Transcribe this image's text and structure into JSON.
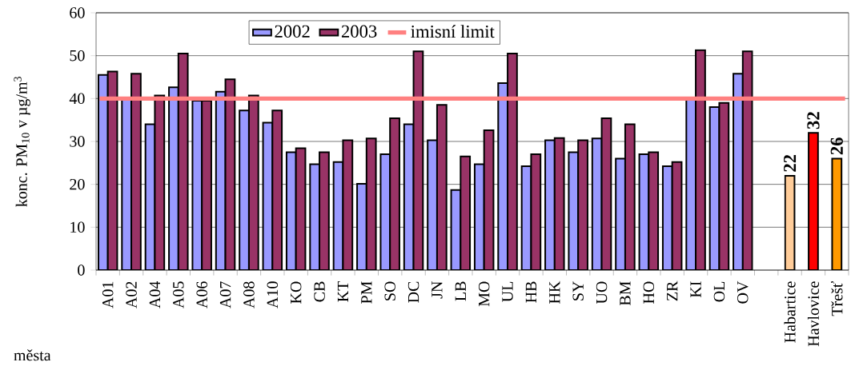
{
  "chart_data": {
    "type": "bar",
    "ylabel": "konc. PM$_{10}$ v µg/m$^{3}$",
    "xlabel": "města",
    "categories": [
      "A01",
      "A02",
      "A04",
      "A05",
      "A06",
      "A07",
      "A08",
      "A10",
      "KO",
      "CB",
      "KT",
      "PM",
      "SO",
      "DC",
      "JN",
      "LB",
      "MO",
      "UL",
      "HB",
      "HK",
      "SY",
      "UO",
      "BM",
      "HO",
      "ZR",
      "KI",
      "OL",
      "OV",
      null,
      "Habartice",
      "Havlovice",
      "Třešť"
    ],
    "series": [
      {
        "name": "2002",
        "color": "#9999ff",
        "values": [
          45.5,
          40,
          34,
          42.6,
          39.5,
          41.6,
          37.2,
          34.4,
          27.5,
          24.7,
          25.2,
          20.1,
          27,
          34,
          30.3,
          18.7,
          24.7,
          43.6,
          24.2,
          30.3,
          27.5,
          30.7,
          26,
          27,
          24.2,
          40,
          38,
          45.8,
          null,
          null,
          null,
          null
        ]
      },
      {
        "name": "2003",
        "color": "#993366",
        "values": [
          46.3,
          45.8,
          40.7,
          50.5,
          39.5,
          44.5,
          40.7,
          37.2,
          28.4,
          27.5,
          30.3,
          30.7,
          35.4,
          51,
          38.5,
          26.5,
          32.6,
          50.5,
          27,
          30.8,
          30.3,
          35.4,
          34,
          27.5,
          25.2,
          51.3,
          39,
          51,
          null,
          null,
          null,
          null
        ]
      },
      {
        "colors": [
          null,
          null,
          null,
          null,
          null,
          null,
          null,
          null,
          null,
          null,
          null,
          null,
          null,
          null,
          null,
          null,
          null,
          null,
          null,
          null,
          null,
          null,
          null,
          null,
          null,
          null,
          null,
          null,
          null,
          "#ffcc99",
          "#ff0000",
          "#ff9900"
        ],
        "values": [
          null,
          null,
          null,
          null,
          null,
          null,
          null,
          null,
          null,
          null,
          null,
          null,
          null,
          null,
          null,
          null,
          null,
          null,
          null,
          null,
          null,
          null,
          null,
          null,
          null,
          null,
          null,
          null,
          null,
          22,
          32,
          26
        ],
        "value_labels": [
          null,
          null,
          null,
          null,
          null,
          null,
          null,
          null,
          null,
          null,
          null,
          null,
          null,
          null,
          null,
          null,
          null,
          null,
          null,
          null,
          null,
          null,
          null,
          null,
          null,
          null,
          null,
          null,
          null,
          "22",
          "32",
          "26"
        ]
      }
    ],
    "ref_lines": [
      {
        "axis": "y",
        "value": 40,
        "label": "imisní limit",
        "color": "#ff8080"
      }
    ],
    "ylim": [
      0,
      60
    ],
    "yticks": [
      0,
      10,
      20,
      30,
      40,
      50,
      60
    ],
    "grid": "y",
    "legend": "top"
  }
}
